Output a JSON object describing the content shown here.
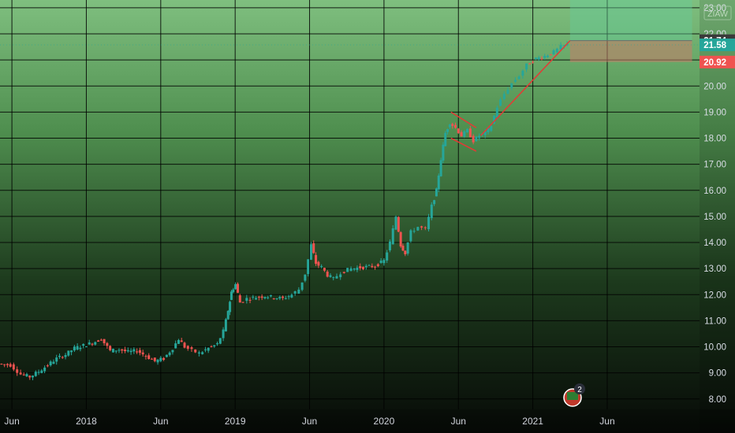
{
  "chart_data": {
    "type": "candlestick",
    "x_ticks": [
      "Jun",
      "2018",
      "Jun",
      "2019",
      "Jun",
      "2020",
      "Jun",
      "2021",
      "Jun"
    ],
    "y_ticks": [
      "8.00",
      "9.00",
      "10.00",
      "11.00",
      "12.00",
      "13.00",
      "14.00",
      "15.00",
      "16.00",
      "17.00",
      "18.00",
      "19.00",
      "20.00",
      "21.00",
      "22.00",
      "23.00"
    ],
    "ylim": [
      7.6,
      23.3
    ],
    "xlim": [
      2017.25,
      2021.95
    ],
    "price_labels": [
      {
        "value": "21.74",
        "color": "#3a3a3a"
      },
      {
        "value": "21.58",
        "color": "#26a69a"
      },
      {
        "value": "20.92",
        "color": "#ef5350"
      }
    ],
    "symbol_watermark": "ZIAW",
    "event_badge_count": "2",
    "series_close": [
      [
        2017.25,
        9.35
      ],
      [
        2017.33,
        9.3
      ],
      [
        2017.4,
        8.95
      ],
      [
        2017.46,
        8.85
      ],
      [
        2017.52,
        9.05
      ],
      [
        2017.58,
        9.3
      ],
      [
        2017.64,
        9.55
      ],
      [
        2017.7,
        9.7
      ],
      [
        2017.76,
        9.95
      ],
      [
        2017.82,
        10.05
      ],
      [
        2017.88,
        10.15
      ],
      [
        2017.94,
        10.3
      ],
      [
        2018.0,
        9.85
      ],
      [
        2018.06,
        9.9
      ],
      [
        2018.12,
        9.8
      ],
      [
        2018.18,
        9.85
      ],
      [
        2018.24,
        9.65
      ],
      [
        2018.3,
        9.45
      ],
      [
        2018.36,
        9.55
      ],
      [
        2018.42,
        9.95
      ],
      [
        2018.46,
        10.3
      ],
      [
        2018.5,
        10.0
      ],
      [
        2018.55,
        9.85
      ],
      [
        2018.6,
        9.75
      ],
      [
        2018.66,
        9.95
      ],
      [
        2018.72,
        10.1
      ],
      [
        2018.76,
        10.6
      ],
      [
        2018.79,
        11.4
      ],
      [
        2018.81,
        12.1
      ],
      [
        2018.84,
        12.4
      ],
      [
        2018.87,
        11.7
      ],
      [
        2018.92,
        11.85
      ],
      [
        2018.98,
        11.9
      ],
      [
        2019.04,
        11.95
      ],
      [
        2019.1,
        11.9
      ],
      [
        2019.16,
        11.85
      ],
      [
        2019.22,
        12.0
      ],
      [
        2019.27,
        12.2
      ],
      [
        2019.31,
        12.8
      ],
      [
        2019.35,
        13.9
      ],
      [
        2019.38,
        13.2
      ],
      [
        2019.42,
        13.05
      ],
      [
        2019.46,
        12.75
      ],
      [
        2019.5,
        12.6
      ],
      [
        2019.55,
        12.85
      ],
      [
        2019.62,
        13.0
      ],
      [
        2019.7,
        13.05
      ],
      [
        2019.78,
        13.1
      ],
      [
        2019.84,
        13.3
      ],
      [
        2019.88,
        14.0
      ],
      [
        2019.92,
        15.0
      ],
      [
        2019.95,
        13.9
      ],
      [
        2019.98,
        13.6
      ],
      [
        2020.02,
        14.4
      ],
      [
        2020.07,
        14.6
      ],
      [
        2020.12,
        14.5
      ],
      [
        2020.16,
        15.4
      ],
      [
        2020.19,
        16.0
      ],
      [
        2020.22,
        17.2
      ],
      [
        2020.25,
        18.2
      ],
      [
        2020.28,
        18.6
      ],
      [
        2020.32,
        18.4
      ],
      [
        2020.36,
        18.1
      ],
      [
        2020.4,
        18.3
      ],
      [
        2020.44,
        17.9
      ],
      [
        2020.48,
        18.1
      ],
      [
        2020.52,
        18.2
      ],
      [
        2020.56,
        18.5
      ],
      [
        2020.6,
        19.2
      ],
      [
        2020.65,
        19.7
      ],
      [
        2020.7,
        20.1
      ],
      [
        2020.75,
        20.4
      ],
      [
        2020.8,
        20.8
      ],
      [
        2020.86,
        21.05
      ],
      [
        2020.92,
        21.15
      ],
      [
        2020.98,
        21.3
      ],
      [
        2021.03,
        21.5
      ],
      [
        2021.07,
        21.58
      ]
    ]
  }
}
